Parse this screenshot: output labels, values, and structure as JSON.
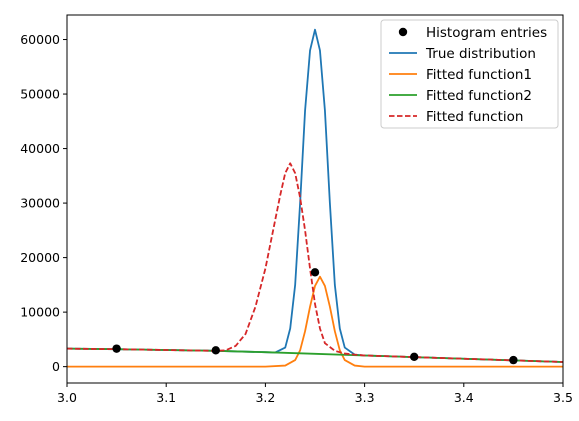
{
  "chart_data": {
    "type": "line",
    "title": "",
    "xlabel": "",
    "ylabel": "",
    "xlim": [
      3.0,
      3.5
    ],
    "ylim": [
      -3000,
      64500
    ],
    "x_ticks": [
      3.0,
      3.1,
      3.2,
      3.3,
      3.4,
      3.5
    ],
    "x_tick_labels": [
      "3.0",
      "3.1",
      "3.2",
      "3.3",
      "3.4",
      "3.5"
    ],
    "y_ticks": [
      0,
      10000,
      20000,
      30000,
      40000,
      50000,
      60000
    ],
    "y_tick_labels": [
      "0",
      "10000",
      "20000",
      "30000",
      "40000",
      "50000",
      "60000"
    ],
    "grid": false,
    "legend_position": "top-right",
    "legend": [
      {
        "label": "Histogram entries",
        "color": "#000000",
        "style": "marker"
      },
      {
        "label": "True distribution",
        "color": "#1f77b4",
        "style": "solid"
      },
      {
        "label": "Fitted function1",
        "color": "#ff7f0e",
        "style": "solid"
      },
      {
        "label": "Fitted function2",
        "color": "#2ca02c",
        "style": "solid"
      },
      {
        "label": "Fitted function",
        "color": "#d62728",
        "style": "dashed"
      }
    ],
    "series": [
      {
        "name": "Histogram entries",
        "kind": "scatter",
        "color": "#000000",
        "x": [
          3.05,
          3.15,
          3.25,
          3.35,
          3.45
        ],
        "y": [
          3300,
          3000,
          17300,
          1800,
          1200
        ]
      },
      {
        "name": "True distribution",
        "kind": "line",
        "color": "#1f77b4",
        "x": [
          3.0,
          3.05,
          3.1,
          3.15,
          3.2,
          3.21,
          3.22,
          3.225,
          3.23,
          3.235,
          3.24,
          3.245,
          3.25,
          3.255,
          3.26,
          3.265,
          3.27,
          3.275,
          3.28,
          3.29,
          3.3,
          3.35,
          3.4,
          3.45,
          3.5
        ],
        "y": [
          3300,
          3200,
          3050,
          2900,
          2650,
          2600,
          3500,
          7000,
          15000,
          30000,
          47000,
          58000,
          61800,
          58000,
          47000,
          30000,
          15000,
          7000,
          3500,
          2200,
          2050,
          1750,
          1450,
          1150,
          850
        ]
      },
      {
        "name": "Fitted function1",
        "kind": "line",
        "color": "#ff7f0e",
        "x": [
          3.0,
          3.2,
          3.22,
          3.23,
          3.235,
          3.24,
          3.245,
          3.25,
          3.255,
          3.26,
          3.265,
          3.27,
          3.275,
          3.28,
          3.29,
          3.3,
          3.5
        ],
        "y": [
          0,
          0,
          200,
          1200,
          3000,
          6500,
          11000,
          14800,
          16500,
          14800,
          11000,
          6500,
          3000,
          1200,
          200,
          0,
          0
        ]
      },
      {
        "name": "Fitted function2",
        "kind": "line",
        "color": "#2ca02c",
        "x": [
          3.0,
          3.05,
          3.1,
          3.15,
          3.2,
          3.25,
          3.3,
          3.35,
          3.4,
          3.45,
          3.5
        ],
        "y": [
          3300,
          3200,
          3050,
          2900,
          2650,
          2350,
          2050,
          1750,
          1450,
          1150,
          850
        ]
      },
      {
        "name": "Fitted function",
        "kind": "line",
        "style": "dashed",
        "color": "#d62728",
        "x": [
          3.0,
          3.05,
          3.1,
          3.15,
          3.16,
          3.17,
          3.18,
          3.19,
          3.2,
          3.21,
          3.215,
          3.22,
          3.225,
          3.23,
          3.235,
          3.24,
          3.245,
          3.25,
          3.255,
          3.26,
          3.27,
          3.28,
          3.29,
          3.3,
          3.35,
          3.4,
          3.45,
          3.5
        ],
        "y": [
          3300,
          3200,
          3050,
          2900,
          3000,
          3800,
          6000,
          11000,
          18000,
          27000,
          31500,
          35500,
          37300,
          35500,
          31000,
          25000,
          18000,
          11500,
          7000,
          4300,
          2900,
          2400,
          2200,
          2050,
          1750,
          1450,
          1150,
          850
        ]
      }
    ]
  }
}
